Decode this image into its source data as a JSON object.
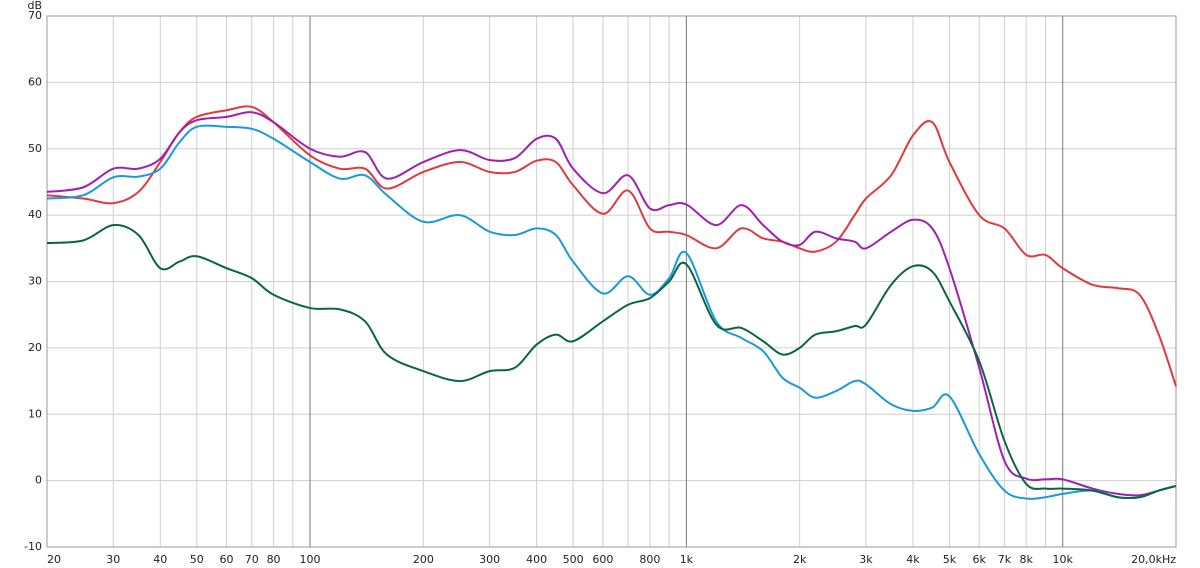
{
  "chart_data": {
    "type": "line",
    "ylabel": "dB",
    "xscale": "log",
    "grid": true,
    "x": [
      20,
      25,
      30,
      35,
      40,
      45,
      50,
      60,
      70,
      80,
      100,
      120,
      140,
      160,
      200,
      250,
      300,
      350,
      400,
      450,
      500,
      600,
      700,
      800,
      900,
      1000,
      1200,
      1400,
      1600,
      1800,
      2000,
      2200,
      2500,
      2800,
      3000,
      3500,
      4000,
      4500,
      5000,
      6000,
      7000,
      8000,
      9000,
      10000,
      12000,
      14000,
      16000,
      18000,
      20000
    ],
    "series": [
      {
        "color": "#e0393e",
        "values": [
          43,
          42.5,
          41.8,
          43.5,
          48,
          52.5,
          54.8,
          55.8,
          56.3,
          54,
          49,
          47,
          47,
          44,
          46.5,
          48,
          46.5,
          46.5,
          48.2,
          48,
          44.5,
          40.2,
          43.7,
          38,
          37.5,
          37,
          35,
          38,
          36.5,
          36,
          35,
          34.5,
          36,
          40,
          42.5,
          46,
          52,
          54,
          48,
          40,
          38,
          34,
          34,
          32,
          29.5,
          29,
          28,
          22,
          14.2
        ]
      },
      {
        "color": "#a020b0",
        "values": [
          43.5,
          44.2,
          47,
          47,
          48.5,
          52.5,
          54.3,
          54.8,
          55.5,
          54,
          50,
          48.8,
          49.5,
          45.5,
          48,
          49.8,
          48.3,
          48.6,
          51.5,
          51.5,
          47,
          43.3,
          46,
          41,
          41.5,
          41.6,
          38.5,
          41.5,
          38.5,
          36,
          35.5,
          37.5,
          36.5,
          36,
          35,
          37.5,
          39.3,
          38,
          32,
          17,
          3,
          0.3,
          0.2,
          0.2,
          -1.2,
          -2,
          -2.2,
          -1.5,
          -0.8
        ]
      },
      {
        "color": "#1a9ad8",
        "values": [
          42.5,
          43,
          45.7,
          45.8,
          47,
          51,
          53.3,
          53.3,
          53,
          51.5,
          48,
          45.5,
          46,
          43,
          39,
          40,
          37.5,
          37,
          38,
          37,
          33,
          28.2,
          30.8,
          28,
          30.5,
          34.3,
          24,
          21.5,
          19.5,
          15.5,
          14,
          12.5,
          13.5,
          15,
          14.5,
          11.5,
          10.5,
          11,
          12.7,
          4,
          -1.5,
          -2.7,
          -2.5,
          -2,
          -1.5,
          -2.5,
          -2.5,
          -1.5,
          -0.8
        ]
      },
      {
        "color": "#0a6640",
        "values": [
          35.8,
          36.2,
          38.5,
          37,
          32,
          33,
          33.8,
          32,
          30.5,
          28,
          26,
          25.8,
          24,
          19,
          16.5,
          15,
          16.5,
          17,
          20.5,
          22,
          21,
          24,
          26.5,
          27.5,
          30,
          32.6,
          23.5,
          23,
          21,
          19,
          20,
          22,
          22.5,
          23.3,
          23.5,
          29.5,
          32.3,
          31.5,
          27,
          18,
          6,
          -0.5,
          -1.2,
          -1.2,
          -1.5,
          -2.5,
          -2.5,
          -1.5,
          -0.8
        ]
      }
    ],
    "xlim": [
      20,
      20000
    ],
    "ylim": [
      -10,
      70
    ],
    "yticks": [
      -10,
      0,
      10,
      20,
      30,
      40,
      50,
      60,
      70
    ],
    "xticks": [
      20,
      30,
      40,
      50,
      60,
      70,
      80,
      100,
      200,
      300,
      400,
      500,
      600,
      800,
      {
        "value": 1000,
        "label": "1k"
      },
      {
        "value": 2000,
        "label": "2k"
      },
      {
        "value": 3000,
        "label": "3k"
      },
      {
        "value": 4000,
        "label": "4k"
      },
      {
        "value": 5000,
        "label": "5k"
      },
      {
        "value": 6000,
        "label": "6k"
      },
      {
        "value": 7000,
        "label": "7k"
      },
      {
        "value": 8000,
        "label": "8k"
      },
      {
        "value": 10000,
        "label": "10k"
      },
      {
        "value": 20000,
        "label": "20,0kHz"
      }
    ],
    "xminor": [
      90,
      700,
      900,
      9000
    ]
  }
}
